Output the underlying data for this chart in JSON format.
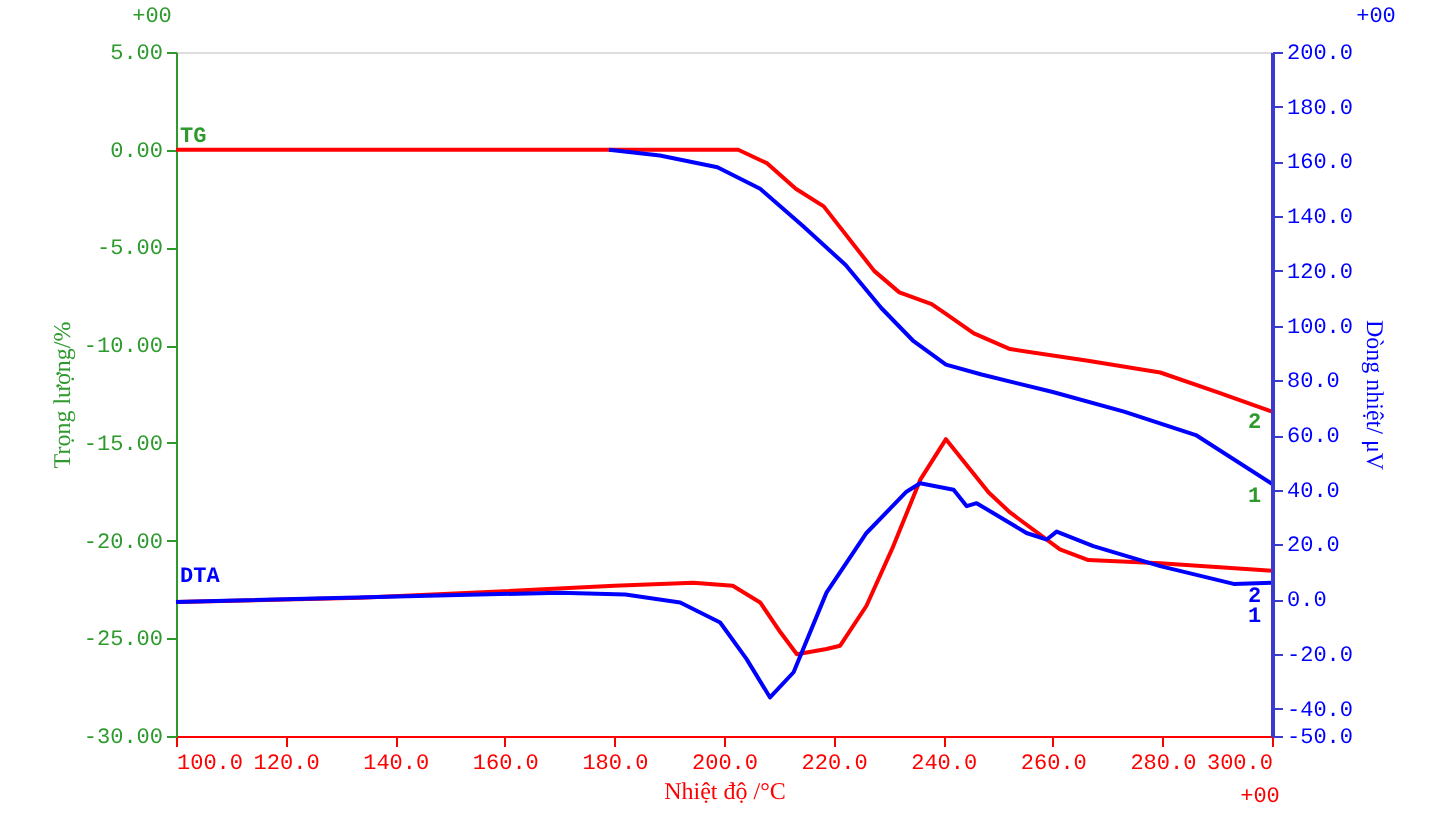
{
  "chart_data": {
    "type": "line",
    "xlabel": "Nhiệt độ /°C",
    "ylabel": "Trọng lượng/%",
    "y2label": "Dòng nhiệt/ μV",
    "xlim": [
      100,
      300
    ],
    "xticks": [
      {
        "value": 100,
        "label": "100.0"
      },
      {
        "value": 120,
        "label": "120.0"
      },
      {
        "value": 140,
        "label": "140.0"
      },
      {
        "value": 160,
        "label": "160.0"
      },
      {
        "value": 180,
        "label": "180.0"
      },
      {
        "value": 200,
        "label": "200.0"
      },
      {
        "value": 220,
        "label": "220.0"
      },
      {
        "value": 240,
        "label": "240.0"
      },
      {
        "value": 260,
        "label": "260.0"
      },
      {
        "value": 280,
        "label": "280.0"
      },
      {
        "value": 300,
        "label": "300.0"
      }
    ],
    "ylim": [
      -30,
      5
    ],
    "yticks": [
      {
        "value": 5,
        "label": "5.00"
      },
      {
        "value": 0,
        "label": "0.00"
      },
      {
        "value": -5,
        "label": "-5.00"
      },
      {
        "value": -10,
        "label": "-10.00"
      },
      {
        "value": -15,
        "label": "-15.00"
      },
      {
        "value": -20,
        "label": "-20.00"
      },
      {
        "value": -25,
        "label": "-25.00"
      },
      {
        "value": -30,
        "label": "-30.00"
      }
    ],
    "y2lim": [
      -50,
      200
    ],
    "y2ticks": [
      {
        "value": 200,
        "label": "200.0"
      },
      {
        "value": 180,
        "label": "180.0"
      },
      {
        "value": 160,
        "label": "160.0"
      },
      {
        "value": 140,
        "label": "140.0"
      },
      {
        "value": 120,
        "label": "120.0"
      },
      {
        "value": 100,
        "label": "100.0"
      },
      {
        "value": 80,
        "label": "80.0"
      },
      {
        "value": 60,
        "label": "60.0"
      },
      {
        "value": 40,
        "label": "40.0"
      },
      {
        "value": 20,
        "label": "20.0"
      },
      {
        "value": 0,
        "label": "0.0"
      },
      {
        "value": -20,
        "label": "-20.0"
      },
      {
        "value": -40,
        "label": "-40.0"
      },
      {
        "value": -50,
        "label": "-50.0"
      }
    ],
    "grid": false,
    "legend": false,
    "marker": "none",
    "line_style": "solid",
    "series": [
      {
        "color": "#ff0000",
        "x": [
          100,
          150,
          202.6,
          207.9,
          213.1,
          218.2,
          227.4,
          232.0,
          237.9,
          240.5,
          245.6,
          252.2,
          266.4,
          279.6,
          290,
          300
        ],
        "values": [
          0.0,
          0.0,
          0.0,
          -0.7,
          -2.0,
          -2.9,
          -6.2,
          -7.3,
          -7.9,
          -8.4,
          -9.4,
          -10.2,
          -10.8,
          -11.4,
          -12.4,
          -13.4
        ]
      },
      {
        "color": "#0000ff",
        "x": [
          179,
          188.3,
          198.8,
          206.6,
          214.4,
          222.2,
          228.7,
          234.6,
          240.5,
          247,
          260,
          273,
          286.1,
          300
        ],
        "values": [
          0.0,
          -0.3,
          -0.9,
          -2.0,
          -3.9,
          -5.9,
          -8.1,
          -9.8,
          -11.0,
          -11.5,
          -12.4,
          -13.4,
          -14.6,
          -17.1
        ]
      },
      {
        "color": "#ff0000",
        "axis": "y2",
        "x": [
          100,
          133.6,
          160,
          180,
          194.4,
          201.6,
          206.6,
          210.3,
          213.3,
          218.7,
          221.2,
          226,
          230.9,
          235.8,
          240.5,
          248.3,
          252.2,
          261.3,
          266.5,
          279.6,
          300
        ],
        "values": [
          -1,
          0.5,
          2.9,
          4.9,
          6.0,
          4.9,
          -1.2,
          -12.1,
          -20.1,
          -18.2,
          -17.0,
          -2.4,
          19.4,
          43.6,
          58.5,
          39.0,
          31.7,
          18.2,
          14.3,
          13.1,
          10.4
        ]
      },
      {
        "color": "#0000ff",
        "axis": "y2",
        "x": [
          100,
          170,
          182,
          192,
          199.3,
          204.1,
          208.4,
          212.7,
          218.7,
          226,
          233.3,
          235.8,
          241.9,
          244.3,
          246.1,
          255.2,
          258.9,
          260.7,
          267.4,
          279.6,
          293,
          300
        ],
        "values": [
          -1,
          2.4,
          1.7,
          -1.2,
          -8.5,
          -21.8,
          -35.9,
          -26.7,
          2.4,
          24.2,
          39.3,
          42.4,
          40.0,
          34.0,
          35.1,
          24.2,
          21.8,
          24.7,
          19.4,
          12.1,
          5.6,
          6.0
        ]
      }
    ],
    "annotations": [
      "TG",
      "DTA",
      "2",
      "1",
      "2",
      "1",
      "+00",
      "+00",
      "+00"
    ]
  }
}
